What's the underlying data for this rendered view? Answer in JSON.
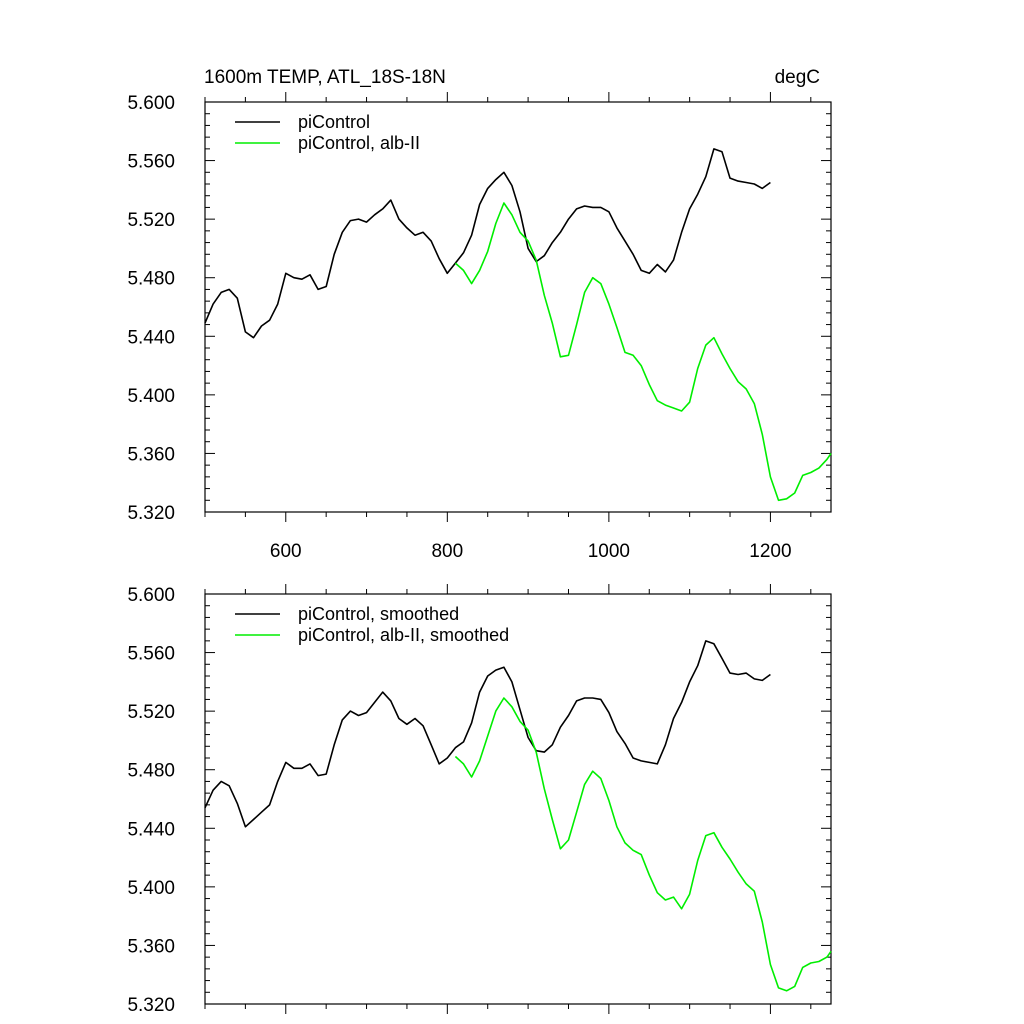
{
  "figure": {
    "title_left": "1600m TEMP, ATL_18S-18N",
    "title_right": "degC"
  },
  "colors": {
    "piControl": "#000000",
    "alb_II": "#00ee00"
  },
  "chart_data": [
    {
      "type": "line",
      "panel": "top",
      "title": "1600m TEMP, ATL_18S-18N",
      "units": "degC",
      "xlim": [
        500,
        1275
      ],
      "ylim": [
        5.32,
        5.6
      ],
      "xticks": [
        600,
        800,
        1000,
        1200
      ],
      "xtick_labels": [
        "600",
        "800",
        "1000",
        "1200"
      ],
      "yticks": [
        5.32,
        5.36,
        5.4,
        5.44,
        5.48,
        5.52,
        5.56,
        5.6
      ],
      "ytick_labels": [
        "5.320",
        "5.360",
        "5.400",
        "5.440",
        "5.480",
        "5.520",
        "5.560",
        "5.600"
      ],
      "legend": "top-left",
      "grid": false,
      "series": [
        {
          "name": "piControl",
          "color": "#000000",
          "x": [
            500,
            510,
            520,
            530,
            540,
            550,
            560,
            570,
            580,
            590,
            600,
            610,
            620,
            630,
            640,
            650,
            660,
            670,
            680,
            690,
            700,
            710,
            720,
            730,
            740,
            750,
            760,
            770,
            780,
            790,
            800,
            810,
            820,
            830,
            840,
            850,
            860,
            870,
            880,
            890,
            900,
            910,
            920,
            930,
            940,
            950,
            960,
            970,
            980,
            990,
            1000,
            1010,
            1020,
            1030,
            1040,
            1050,
            1060,
            1070,
            1080,
            1090,
            1100,
            1110,
            1120,
            1130,
            1140,
            1150,
            1160,
            1170,
            1180,
            1190,
            1200
          ],
          "y": [
            5.449,
            5.462,
            5.47,
            5.472,
            5.466,
            5.443,
            5.439,
            5.447,
            5.451,
            5.462,
            5.483,
            5.48,
            5.479,
            5.482,
            5.472,
            5.474,
            5.496,
            5.511,
            5.519,
            5.52,
            5.518,
            5.523,
            5.527,
            5.533,
            5.52,
            5.514,
            5.509,
            5.511,
            5.505,
            5.493,
            5.483,
            5.49,
            5.497,
            5.509,
            5.53,
            5.541,
            5.547,
            5.552,
            5.543,
            5.525,
            5.5,
            5.491,
            5.495,
            5.504,
            5.511,
            5.52,
            5.527,
            5.529,
            5.528,
            5.528,
            5.525,
            5.514,
            5.505,
            5.496,
            5.485,
            5.483,
            5.489,
            5.484,
            5.492,
            5.511,
            5.527,
            5.537,
            5.549,
            5.568,
            5.566,
            5.548,
            5.546,
            5.545,
            5.544,
            5.541,
            5.545
          ]
        },
        {
          "name": "piControl, alb-II",
          "color": "#00ee00",
          "x": [
            810,
            820,
            830,
            840,
            850,
            860,
            870,
            880,
            890,
            900,
            910,
            920,
            930,
            940,
            950,
            960,
            970,
            980,
            990,
            1000,
            1010,
            1020,
            1030,
            1040,
            1050,
            1060,
            1070,
            1080,
            1090,
            1100,
            1110,
            1120,
            1130,
            1140,
            1150,
            1160,
            1170,
            1180,
            1190,
            1200,
            1210,
            1220,
            1230,
            1240,
            1250,
            1260,
            1270,
            1275
          ],
          "y": [
            5.49,
            5.485,
            5.476,
            5.485,
            5.498,
            5.517,
            5.531,
            5.523,
            5.511,
            5.505,
            5.492,
            5.468,
            5.449,
            5.426,
            5.427,
            5.448,
            5.47,
            5.48,
            5.476,
            5.462,
            5.446,
            5.429,
            5.427,
            5.42,
            5.407,
            5.396,
            5.393,
            5.391,
            5.389,
            5.395,
            5.418,
            5.434,
            5.439,
            5.428,
            5.418,
            5.409,
            5.404,
            5.394,
            5.373,
            5.344,
            5.328,
            5.329,
            5.333,
            5.345,
            5.347,
            5.35,
            5.356,
            5.36
          ]
        }
      ]
    },
    {
      "type": "line",
      "panel": "bottom",
      "xlim": [
        500,
        1275
      ],
      "ylim": [
        5.32,
        5.6
      ],
      "xticks": [
        600,
        800,
        1000,
        1200
      ],
      "yticks": [
        5.32,
        5.36,
        5.4,
        5.44,
        5.48,
        5.52,
        5.56,
        5.6
      ],
      "ytick_labels": [
        "5.320",
        "5.360",
        "5.400",
        "5.440",
        "5.480",
        "5.520",
        "5.560",
        "5.600"
      ],
      "legend": "top-left",
      "grid": false,
      "series": [
        {
          "name": "piControl, smoothed",
          "color": "#000000",
          "x": [
            500,
            510,
            520,
            530,
            540,
            550,
            560,
            570,
            580,
            590,
            600,
            610,
            620,
            630,
            640,
            650,
            660,
            670,
            680,
            690,
            700,
            710,
            720,
            730,
            740,
            750,
            760,
            770,
            780,
            790,
            800,
            810,
            820,
            830,
            840,
            850,
            860,
            870,
            880,
            890,
            900,
            910,
            920,
            930,
            940,
            950,
            960,
            970,
            980,
            990,
            1000,
            1010,
            1020,
            1030,
            1040,
            1050,
            1060,
            1070,
            1080,
            1090,
            1100,
            1110,
            1120,
            1130,
            1140,
            1150,
            1160,
            1170,
            1180,
            1190,
            1200
          ],
          "y": [
            5.454,
            5.466,
            5.472,
            5.469,
            5.457,
            5.441,
            5.446,
            5.451,
            5.456,
            5.472,
            5.485,
            5.481,
            5.481,
            5.484,
            5.476,
            5.477,
            5.497,
            5.514,
            5.52,
            5.517,
            5.519,
            5.526,
            5.533,
            5.527,
            5.515,
            5.511,
            5.515,
            5.51,
            5.497,
            5.484,
            5.488,
            5.495,
            5.499,
            5.512,
            5.533,
            5.544,
            5.548,
            5.55,
            5.54,
            5.521,
            5.502,
            5.493,
            5.492,
            5.497,
            5.509,
            5.517,
            5.527,
            5.529,
            5.529,
            5.528,
            5.519,
            5.506,
            5.498,
            5.488,
            5.486,
            5.485,
            5.484,
            5.497,
            5.515,
            5.526,
            5.54,
            5.551,
            5.568,
            5.566,
            5.556,
            5.546,
            5.545,
            5.546,
            5.542,
            5.541,
            5.545
          ]
        },
        {
          "name": "piControl, alb-II, smoothed",
          "color": "#00ee00",
          "x": [
            810,
            820,
            830,
            840,
            850,
            860,
            870,
            880,
            890,
            900,
            910,
            920,
            930,
            940,
            950,
            960,
            970,
            980,
            990,
            1000,
            1010,
            1020,
            1030,
            1040,
            1050,
            1060,
            1070,
            1080,
            1090,
            1100,
            1110,
            1120,
            1130,
            1140,
            1150,
            1160,
            1170,
            1180,
            1190,
            1200,
            1210,
            1220,
            1230,
            1240,
            1250,
            1260,
            1270,
            1275
          ],
          "y": [
            5.489,
            5.484,
            5.475,
            5.486,
            5.503,
            5.52,
            5.529,
            5.523,
            5.513,
            5.507,
            5.492,
            5.467,
            5.446,
            5.426,
            5.432,
            5.451,
            5.47,
            5.479,
            5.474,
            5.459,
            5.441,
            5.43,
            5.425,
            5.422,
            5.408,
            5.396,
            5.391,
            5.393,
            5.385,
            5.395,
            5.418,
            5.435,
            5.437,
            5.427,
            5.419,
            5.41,
            5.402,
            5.397,
            5.376,
            5.347,
            5.331,
            5.329,
            5.332,
            5.345,
            5.348,
            5.349,
            5.352,
            5.356
          ]
        }
      ]
    }
  ]
}
